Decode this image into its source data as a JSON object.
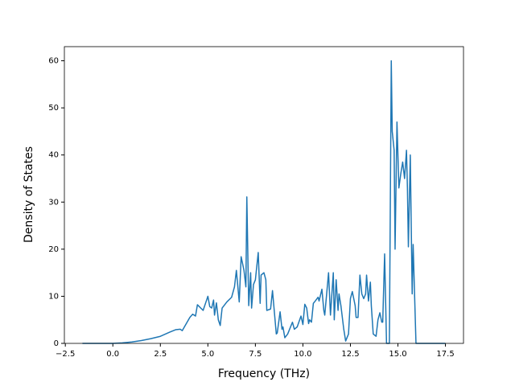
{
  "chart_data": {
    "type": "line",
    "xlabel": "Frequency (THz)",
    "ylabel": "Density of States",
    "xlim": [
      -2.55,
      18.45
    ],
    "ylim": [
      0,
      63
    ],
    "xticks": [
      {
        "value": -2.5,
        "label": "−2.5"
      },
      {
        "value": 0,
        "label": "0.0"
      },
      2.5,
      {
        "value": 5,
        "label": "5.0"
      },
      7.5,
      {
        "value": 10,
        "label": "10.0"
      },
      12.5,
      {
        "value": 15,
        "label": "15.0"
      },
      17.5
    ],
    "yticks": [
      0,
      10,
      20,
      30,
      40,
      50,
      60
    ],
    "grid": false,
    "x": [
      -1.6,
      0,
      0.5,
      1.0,
      1.5,
      2.0,
      2.5,
      3.0,
      3.3,
      3.55,
      3.65,
      4.05,
      4.2,
      4.35,
      4.45,
      4.75,
      5.0,
      5.1,
      5.2,
      5.3,
      5.35,
      5.45,
      5.55,
      5.65,
      5.75,
      6.0,
      6.25,
      6.4,
      6.5,
      6.65,
      6.75,
      6.9,
      7.0,
      7.05,
      7.15,
      7.25,
      7.3,
      7.4,
      7.5,
      7.65,
      7.75,
      7.8,
      7.95,
      8.05,
      8.1,
      8.3,
      8.4,
      8.6,
      8.65,
      8.8,
      8.9,
      8.95,
      9.05,
      9.2,
      9.45,
      9.55,
      9.7,
      9.9,
      10.0,
      10.1,
      10.2,
      10.3,
      10.35,
      10.45,
      10.55,
      10.65,
      10.8,
      10.85,
      11.0,
      11.1,
      11.15,
      11.35,
      11.45,
      11.6,
      11.65,
      11.75,
      11.85,
      11.9,
      12.0,
      12.15,
      12.25,
      12.4,
      12.5,
      12.6,
      12.75,
      12.8,
      12.9,
      13.0,
      13.1,
      13.2,
      13.3,
      13.35,
      13.45,
      13.55,
      13.6,
      13.7,
      13.85,
      13.95,
      14.05,
      14.15,
      14.2,
      14.3,
      14.4,
      14.55,
      14.65,
      14.7,
      14.8,
      14.85,
      14.95,
      15.05,
      15.15,
      15.25,
      15.35,
      15.45,
      15.5,
      15.55,
      15.65,
      15.7,
      15.75,
      15.8,
      15.95,
      17.5
    ],
    "series": [
      {
        "color": "#1f77b4",
        "values": [
          0,
          0,
          0.1,
          0.3,
          0.6,
          1.0,
          1.5,
          2.4,
          2.9,
          3.0,
          2.7,
          5.5,
          6.2,
          5.8,
          8.2,
          7.0,
          10,
          7.8,
          7.5,
          9.2,
          6.0,
          8.6,
          5.0,
          3.8,
          7.5,
          8.8,
          9.8,
          12,
          15.5,
          8.8,
          18.4,
          15.5,
          12,
          31.1,
          8,
          15,
          7.5,
          12.5,
          13.5,
          19.3,
          8.5,
          14.5,
          15,
          13.5,
          7.0,
          7.3,
          11.2,
          2,
          2.2,
          6.7,
          3,
          3.5,
          1.2,
          2,
          4.5,
          3,
          3.5,
          5.8,
          4,
          8.3,
          7.5,
          4.2,
          5,
          4.5,
          8.5,
          9,
          9.8,
          9,
          11.5,
          7,
          6,
          15,
          6,
          15,
          5,
          13.5,
          7,
          10.5,
          8,
          3,
          0.5,
          2,
          9.5,
          11,
          8,
          5.5,
          5.5,
          14.5,
          10.5,
          9.5,
          10.5,
          14.5,
          9,
          13,
          8,
          2,
          1.5,
          5,
          6.5,
          4.5,
          4.5,
          19,
          0,
          0,
          60,
          45,
          41,
          20,
          47,
          33,
          36,
          38.5,
          35,
          41,
          33,
          20.5,
          40,
          25,
          10.5,
          21,
          0,
          0
        ]
      }
    ]
  }
}
